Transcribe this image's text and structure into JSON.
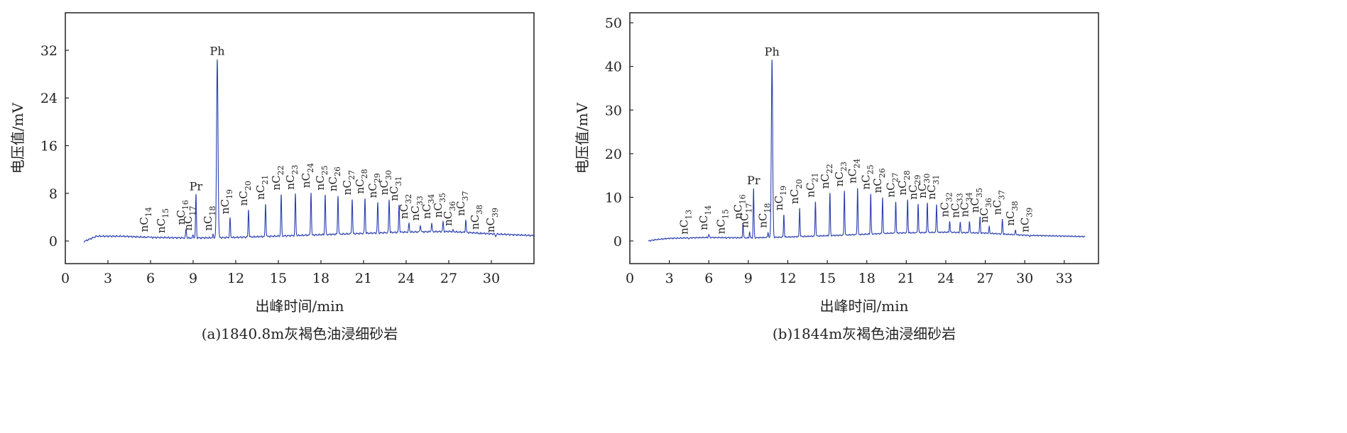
{
  "chart_data": [
    {
      "type": "line",
      "title": "(a)1840.8m灰褐色油浸细砂岩",
      "xlabel": "出峰时间/min",
      "ylabel": "电压值/mV",
      "xlim": [
        0,
        33
      ],
      "ylim": [
        -3.8,
        38.3
      ],
      "xticks": [
        0,
        3,
        6,
        9,
        12,
        15,
        18,
        21,
        24,
        27,
        30
      ],
      "yticks": [
        0,
        8,
        16,
        24,
        32
      ],
      "grid": false,
      "color": "#2b3fb0",
      "baseline": [
        [
          1.3,
          -0.1
        ],
        [
          1.7,
          0.3
        ],
        [
          2.2,
          0.8
        ],
        [
          4,
          0.8
        ],
        [
          6,
          0.6
        ],
        [
          9,
          0.5
        ],
        [
          12,
          0.6
        ],
        [
          16,
          0.9
        ],
        [
          20,
          1.2
        ],
        [
          24,
          1.5
        ],
        [
          27,
          1.6
        ],
        [
          30,
          1.2
        ],
        [
          33,
          0.9
        ]
      ],
      "peaks": [
        {
          "name": "nC",
          "sub": "14",
          "x": 5.9,
          "y": 0.8
        },
        {
          "name": "nC",
          "sub": "15",
          "x": 7.1,
          "y": 0.6
        },
        {
          "name": "nC",
          "sub": "16",
          "x": 8.5,
          "y": 2.0
        },
        {
          "name": "nC",
          "sub": "17",
          "x": 9.0,
          "y": 1.0
        },
        {
          "name": "Pr",
          "sub": "",
          "x": 9.2,
          "y": 7.8
        },
        {
          "name": "nC",
          "sub": "18",
          "x": 10.4,
          "y": 1.0
        },
        {
          "name": "Ph",
          "sub": "",
          "x": 10.7,
          "y": 30.5
        },
        {
          "name": "nC",
          "sub": "19",
          "x": 11.6,
          "y": 3.8
        },
        {
          "name": "nC",
          "sub": "20",
          "x": 12.9,
          "y": 5.2
        },
        {
          "name": "nC",
          "sub": "21",
          "x": 14.1,
          "y": 6.2
        },
        {
          "name": "nC",
          "sub": "22",
          "x": 15.2,
          "y": 7.8
        },
        {
          "name": "nC",
          "sub": "23",
          "x": 16.2,
          "y": 7.9
        },
        {
          "name": "nC",
          "sub": "24",
          "x": 17.3,
          "y": 8.2
        },
        {
          "name": "nC",
          "sub": "25",
          "x": 18.3,
          "y": 7.8
        },
        {
          "name": "nC",
          "sub": "26",
          "x": 19.2,
          "y": 7.6
        },
        {
          "name": "nC",
          "sub": "27",
          "x": 20.2,
          "y": 7.0
        },
        {
          "name": "nC",
          "sub": "28",
          "x": 21.1,
          "y": 7.2
        },
        {
          "name": "nC",
          "sub": "29",
          "x": 22.0,
          "y": 6.5
        },
        {
          "name": "nC",
          "sub": "30",
          "x": 22.8,
          "y": 7.0
        },
        {
          "name": "nC",
          "sub": "31",
          "x": 23.5,
          "y": 6.0
        },
        {
          "name": "nC",
          "sub": "32",
          "x": 24.2,
          "y": 3.0
        },
        {
          "name": "nC",
          "sub": "33",
          "x": 25.0,
          "y": 2.7
        },
        {
          "name": "nC",
          "sub": "34",
          "x": 25.8,
          "y": 3.0
        },
        {
          "name": "nC",
          "sub": "35",
          "x": 26.6,
          "y": 3.2
        },
        {
          "name": "nC",
          "sub": "36",
          "x": 27.3,
          "y": 1.8
        },
        {
          "name": "nC",
          "sub": "37",
          "x": 28.2,
          "y": 3.5
        },
        {
          "name": "nC",
          "sub": "38",
          "x": 29.2,
          "y": 1.2
        },
        {
          "name": "nC",
          "sub": "39",
          "x": 30.3,
          "y": 0.7
        }
      ]
    },
    {
      "type": "line",
      "title": "(b)1844m灰褐色油浸细砂岩",
      "xlabel": "出峰时间/min",
      "ylabel": "电压值/mV",
      "xlim": [
        0,
        35.6
      ],
      "ylim": [
        -5.2,
        52.3
      ],
      "xticks": [
        0,
        3,
        6,
        9,
        12,
        15,
        18,
        21,
        24,
        27,
        30,
        33
      ],
      "yticks": [
        0,
        10,
        20,
        30,
        40,
        50
      ],
      "grid": false,
      "color": "#2b3fb0",
      "baseline": [
        [
          1.4,
          0.0
        ],
        [
          2,
          0.3
        ],
        [
          3,
          0.6
        ],
        [
          6,
          0.8
        ],
        [
          9,
          0.7
        ],
        [
          12,
          0.9
        ],
        [
          16,
          1.3
        ],
        [
          20,
          1.8
        ],
        [
          24,
          2.0
        ],
        [
          27,
          1.8
        ],
        [
          30,
          1.3
        ],
        [
          34.6,
          1.0
        ]
      ],
      "peaks": [
        {
          "name": "nC",
          "sub": "13",
          "x": 4.5,
          "y": 0.5
        },
        {
          "name": "nC",
          "sub": "14",
          "x": 6.0,
          "y": 1.5
        },
        {
          "name": "nC",
          "sub": "15",
          "x": 7.3,
          "y": 0.6
        },
        {
          "name": "nC",
          "sub": "16",
          "x": 8.6,
          "y": 4.0
        },
        {
          "name": "nC",
          "sub": "17",
          "x": 9.1,
          "y": 2.0
        },
        {
          "name": "Pr",
          "sub": "",
          "x": 9.4,
          "y": 12.0
        },
        {
          "name": "nC",
          "sub": "18",
          "x": 10.5,
          "y": 2.0
        },
        {
          "name": "Ph",
          "sub": "",
          "x": 10.8,
          "y": 41.5
        },
        {
          "name": "nC",
          "sub": "19",
          "x": 11.7,
          "y": 6.0
        },
        {
          "name": "nC",
          "sub": "20",
          "x": 12.9,
          "y": 7.5
        },
        {
          "name": "nC",
          "sub": "21",
          "x": 14.1,
          "y": 9.0
        },
        {
          "name": "nC",
          "sub": "22",
          "x": 15.2,
          "y": 11.0
        },
        {
          "name": "nC",
          "sub": "23",
          "x": 16.3,
          "y": 11.5
        },
        {
          "name": "nC",
          "sub": "24",
          "x": 17.3,
          "y": 12.2
        },
        {
          "name": "nC",
          "sub": "25",
          "x": 18.3,
          "y": 10.8
        },
        {
          "name": "nC",
          "sub": "26",
          "x": 19.2,
          "y": 10.0
        },
        {
          "name": "nC",
          "sub": "27",
          "x": 20.2,
          "y": 9.0
        },
        {
          "name": "nC",
          "sub": "28",
          "x": 21.1,
          "y": 9.5
        },
        {
          "name": "nC",
          "sub": "29",
          "x": 21.9,
          "y": 8.5
        },
        {
          "name": "nC",
          "sub": "30",
          "x": 22.6,
          "y": 8.8
        },
        {
          "name": "nC",
          "sub": "31",
          "x": 23.3,
          "y": 8.5
        },
        {
          "name": "nC",
          "sub": "32",
          "x": 24.3,
          "y": 4.5
        },
        {
          "name": "nC",
          "sub": "33",
          "x": 25.1,
          "y": 4.3
        },
        {
          "name": "nC",
          "sub": "34",
          "x": 25.8,
          "y": 4.5
        },
        {
          "name": "nC",
          "sub": "35",
          "x": 26.6,
          "y": 5.5
        },
        {
          "name": "nC",
          "sub": "36",
          "x": 27.3,
          "y": 3.2
        },
        {
          "name": "nC",
          "sub": "37",
          "x": 28.3,
          "y": 5.0
        },
        {
          "name": "nC",
          "sub": "38",
          "x": 29.3,
          "y": 2.5
        },
        {
          "name": "nC",
          "sub": "39",
          "x": 30.4,
          "y": 1.0
        }
      ]
    }
  ]
}
